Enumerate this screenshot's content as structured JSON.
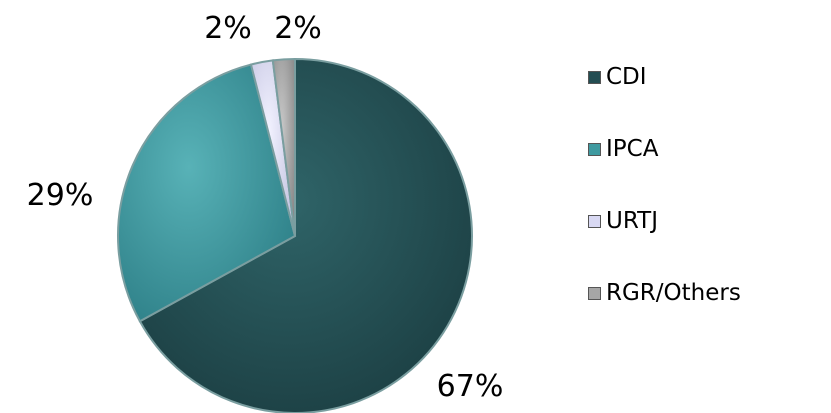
{
  "chart_data": {
    "type": "pie",
    "categories": [
      "CDI",
      "IPCA",
      "URTJ",
      "RGR/Others"
    ],
    "values": [
      67,
      29,
      2,
      2
    ],
    "labels": [
      "67%",
      "29%",
      "2%",
      "2%"
    ],
    "colors": [
      "#234d52",
      "#3f9aa0",
      "#d9d9f3",
      "#a6a6a6"
    ],
    "legend_position": "right"
  }
}
